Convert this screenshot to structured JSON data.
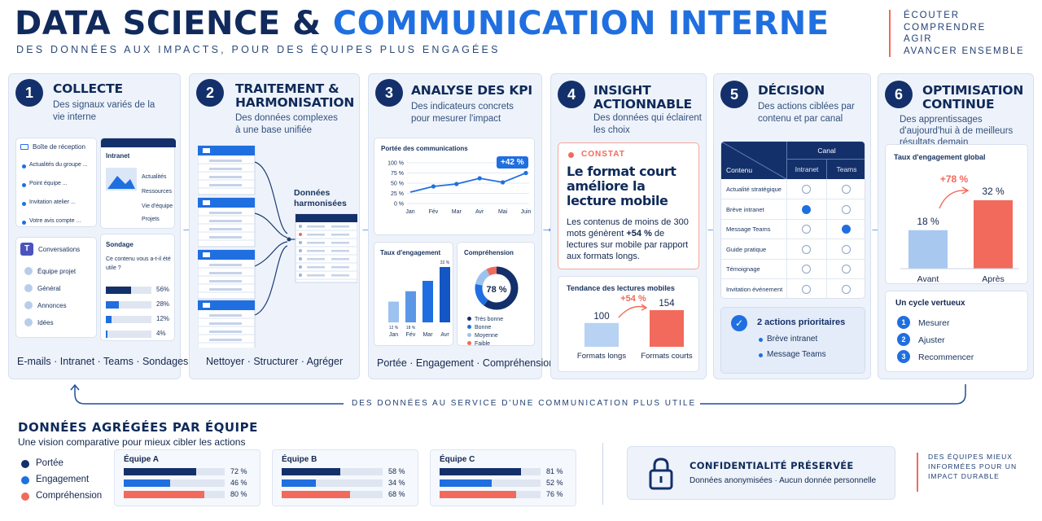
{
  "header": {
    "title_part1": "DATA SCIENCE & ",
    "title_part2": "COMMUNICATION INTERNE",
    "subtitle": "DES DONNÉES AUX IMPACTS, POUR DES ÉQUIPES PLUS ENGAGÉES",
    "tagline": [
      "ÉCOUTER",
      "COMPRENDRE",
      "AGIR",
      "AVANCER ENSEMBLE"
    ]
  },
  "steps": [
    {
      "num": "1",
      "title": "COLLECTE",
      "desc": "Des signaux variés de la vie interne",
      "footer": "E-mails · Intranet · Teams · Sondages"
    },
    {
      "num": "2",
      "title": "TRAITEMENT & HARMONISATION",
      "desc": "Des données complexes à une base unifiée",
      "footer": "Nettoyer · Structurer · Agréger"
    },
    {
      "num": "3",
      "title": "ANALYSE DES KPI",
      "desc": "Des indicateurs concrets pour mesurer l'impact",
      "footer": "Portée · Engagement · Compréhension"
    },
    {
      "num": "4",
      "title": "INSIGHT ACTIONNABLE",
      "desc": "Des données qui éclairent les choix"
    },
    {
      "num": "5",
      "title": "DÉCISION",
      "desc": "Des actions ciblées par contenu et par canal"
    },
    {
      "num": "6",
      "title": "OPTIMISATION CONTINUE",
      "desc": "Des apprentissages d'aujourd'hui à de meilleurs résultats demain"
    }
  ],
  "collecte": {
    "inbox_title": "Boîte de réception",
    "inbox_items": [
      "Actualités du groupe ...",
      "Point équipe ...",
      "Invitation atelier ...",
      "Votre avis compte ..."
    ],
    "intranet_title": "Intranet",
    "intranet_items": [
      "Actualités",
      "Ressources",
      "Vie d'équipe",
      "Projets"
    ],
    "teams_title": "Conversations",
    "teams_items": [
      "Équipe projet",
      "Général",
      "Annonces",
      "Idées"
    ],
    "survey_title": "Sondage",
    "survey_question": "Ce contenu vous a-t-il été utile ?",
    "survey_results": [
      {
        "pct": 56,
        "label": "56%"
      },
      {
        "pct": 28,
        "label": "28%"
      },
      {
        "pct": 12,
        "label": "12%"
      },
      {
        "pct": 4,
        "label": "4%"
      }
    ]
  },
  "traitement": {
    "harmonized_label": "Données harmonisées"
  },
  "kpi": {
    "reach_title": "Portée des communications",
    "reach_badge": "+42 %",
    "reach_yticks": [
      "100 %",
      "75 %",
      "50 %",
      "25 %",
      "0 %"
    ],
    "engagement_title": "Taux d'engagement",
    "comprehension_title": "Compréhension",
    "comprehension_value": "78 %",
    "comprehension_legend": [
      "Très bonne",
      "Bonne",
      "Moyenne",
      "Faible"
    ],
    "engagement_bar_labels": [
      "12 %",
      "18 %",
      "",
      "32 %"
    ]
  },
  "insight": {
    "tag": "CONSTAT",
    "headline": "Le format court améliore la lecture mobile",
    "body_pre": "Les contenus de moins de 300 mots génèrent ",
    "body_bold": "+54 %",
    "body_post": " de lectures sur mobile par rapport aux formats longs.",
    "trend_title": "Tendance des lectures mobiles",
    "delta": "+54 %"
  },
  "decision": {
    "canal_label": "Canal",
    "contenu_label": "Contenu",
    "channels": [
      "Intranet",
      "Teams"
    ],
    "rows": [
      {
        "label": "Actualité stratégique",
        "intranet": false,
        "teams": false
      },
      {
        "label": "Brève intranet",
        "intranet": true,
        "teams": false
      },
      {
        "label": "Message Teams",
        "intranet": false,
        "teams": true
      },
      {
        "label": "Guide pratique",
        "intranet": false,
        "teams": false
      },
      {
        "label": "Témoignage",
        "intranet": false,
        "teams": false
      },
      {
        "label": "Invitation événement",
        "intranet": false,
        "teams": false
      }
    ],
    "priority_title": "2 actions prioritaires",
    "priority_items": [
      "Brève intranet",
      "Message Teams"
    ]
  },
  "optimisation": {
    "chart_title": "Taux d'engagement global",
    "delta": "+78 %",
    "cycle_title": "Un cycle vertueux",
    "cycle_steps": [
      {
        "n": "1",
        "label": "Mesurer"
      },
      {
        "n": "2",
        "label": "Ajuster"
      },
      {
        "n": "3",
        "label": "Recommencer"
      }
    ]
  },
  "loop_label": "DES DONNÉES AU SERVICE D'UNE COMMUNICATION PLUS UTILE",
  "bottom": {
    "title": "DONNÉES AGRÉGÉES PAR ÉQUIPE",
    "subtitle": "Une vision comparative pour mieux cibler les actions",
    "legend": [
      "Portée",
      "Engagement",
      "Compréhension"
    ],
    "teams": [
      {
        "name": "Équipe A",
        "values": [
          {
            "v": 72,
            "label": "72 %"
          },
          {
            "v": 46,
            "label": "46 %"
          },
          {
            "v": 80,
            "label": "80 %"
          }
        ]
      },
      {
        "name": "Équipe B",
        "values": [
          {
            "v": 58,
            "label": "58 %"
          },
          {
            "v": 34,
            "label": "34 %"
          },
          {
            "v": 68,
            "label": "68 %"
          }
        ]
      },
      {
        "name": "Équipe C",
        "values": [
          {
            "v": 81,
            "label": "81 %"
          },
          {
            "v": 52,
            "label": "52 %"
          },
          {
            "v": 76,
            "label": "76 %"
          }
        ]
      }
    ],
    "privacy_title": "CONFIDENTIALITÉ PRÉSERVÉE",
    "privacy_text": "Données anonymisées · Aucun donnée personnelle",
    "closing": "DES ÉQUIPES MIEUX INFORMÉES POUR UN IMPACT DURABLE"
  },
  "chart_data": [
    {
      "type": "line",
      "title": "Portée des communications",
      "x": [
        "Jan",
        "Fév",
        "Mar",
        "Avr",
        "Mai",
        "Juin"
      ],
      "values": [
        28,
        42,
        48,
        62,
        52,
        75
      ],
      "ylim": [
        0,
        100
      ],
      "annotation": "+42 %"
    },
    {
      "type": "bar",
      "title": "Taux d'engagement",
      "categories": [
        "Jan",
        "Fév",
        "Mar",
        "Avr"
      ],
      "values": [
        12,
        18,
        24,
        32
      ]
    },
    {
      "type": "pie",
      "title": "Compréhension",
      "categories": [
        "Très bonne",
        "Bonne",
        "Moyenne",
        "Faible"
      ],
      "values": [
        60,
        18,
        14,
        8
      ],
      "center_label": "78 %"
    },
    {
      "type": "bar",
      "title": "Tendance des lectures mobiles",
      "categories": [
        "Formats longs",
        "Formats courts"
      ],
      "values": [
        100,
        154
      ],
      "annotation": "+54 %"
    },
    {
      "type": "bar",
      "title": "Taux d'engagement global",
      "categories": [
        "Avant",
        "Après"
      ],
      "values": [
        18,
        32
      ],
      "annotation": "+78 %"
    }
  ],
  "colors": {
    "navy": "#14306a",
    "blue": "#1f6fe0",
    "light_blue": "#9cc2ef",
    "coral": "#f26a5b",
    "panel": "#eef3fb"
  }
}
